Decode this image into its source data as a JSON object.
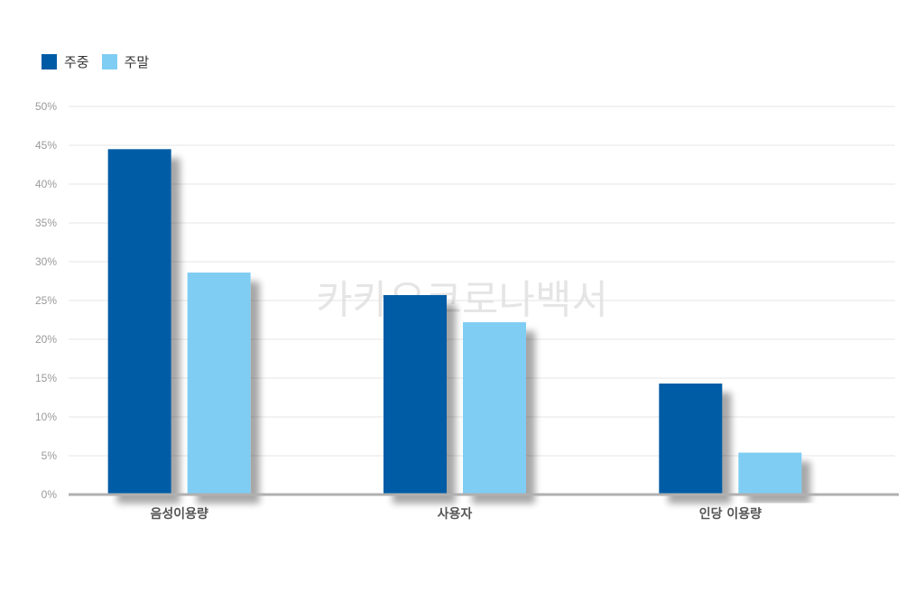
{
  "chart_data": {
    "type": "bar",
    "categories": [
      "음성이용량",
      "사용자",
      "인당 이용량"
    ],
    "series": [
      {
        "name": "주중",
        "values": [
          44.5,
          25.7,
          14.3
        ],
        "color": "#005ba5"
      },
      {
        "name": "주말",
        "values": [
          28.6,
          22.2,
          5.4
        ],
        "color": "#7fcdf3"
      }
    ],
    "ylim": [
      0,
      50
    ],
    "yticks": [
      0,
      5,
      10,
      15,
      20,
      25,
      30,
      35,
      40,
      45,
      50
    ],
    "tick_suffix": "%",
    "grid": true,
    "legend": "top-left",
    "watermark": "카카오코로나백서"
  }
}
